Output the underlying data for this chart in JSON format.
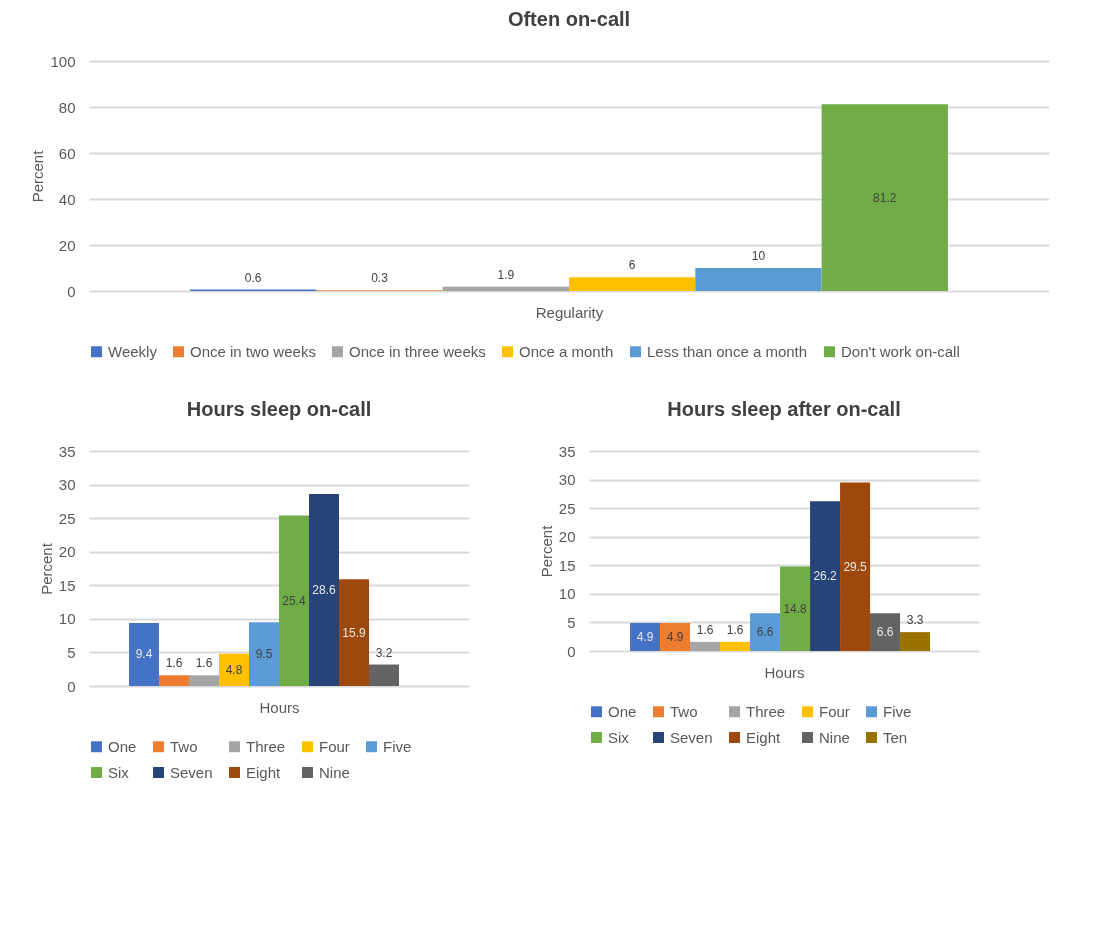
{
  "chart_data": [
    {
      "type": "bar",
      "title": "Often on-call",
      "xlabel": "Regularity",
      "ylabel": "Percent",
      "categories": [
        null
      ],
      "ylim": [
        0,
        100
      ],
      "yticks": [
        0,
        20,
        40,
        60,
        80,
        100
      ],
      "grid": "y",
      "legend": "bottom",
      "data_labels": true,
      "series": [
        {
          "name": "Weekly",
          "color": "#4472c4",
          "values": [
            0.6
          ]
        },
        {
          "name": "Once in two weeks",
          "color": "#ed7d31",
          "values": [
            0.3
          ]
        },
        {
          "name": "Once in three weeks",
          "color": "#a5a5a5",
          "values": [
            1.9
          ]
        },
        {
          "name": "Once a month",
          "color": "#ffc000",
          "values": [
            6
          ]
        },
        {
          "name": "Less than once a month",
          "color": "#5b9bd5",
          "values": [
            10
          ]
        },
        {
          "name": "Don't work on-call",
          "color": "#70ad47",
          "values": [
            81.2
          ]
        }
      ]
    },
    {
      "type": "bar",
      "title": "Hours sleep on-call",
      "xlabel": "Hours",
      "ylabel": "Percent",
      "categories": [
        null
      ],
      "ylim": [
        0,
        35
      ],
      "yticks": [
        0,
        5,
        10,
        15,
        20,
        25,
        30,
        35
      ],
      "grid": "y",
      "legend": "bottom",
      "data_labels": true,
      "series": [
        {
          "name": "One",
          "color": "#4472c4",
          "values": [
            9.4
          ]
        },
        {
          "name": "Two",
          "color": "#ed7d31",
          "values": [
            1.6
          ]
        },
        {
          "name": "Three",
          "color": "#a5a5a5",
          "values": [
            1.6
          ]
        },
        {
          "name": "Four",
          "color": "#ffc000",
          "values": [
            4.8
          ]
        },
        {
          "name": "Five",
          "color": "#5b9bd5",
          "values": [
            9.5
          ]
        },
        {
          "name": "Six",
          "color": "#70ad47",
          "values": [
            25.4
          ]
        },
        {
          "name": "Seven",
          "color": "#264478",
          "values": [
            28.6
          ]
        },
        {
          "name": "Eight",
          "color": "#9e480e",
          "values": [
            15.9
          ]
        },
        {
          "name": "Nine",
          "color": "#636363",
          "values": [
            3.2
          ]
        }
      ]
    },
    {
      "type": "bar",
      "title": "Hours sleep after on-call",
      "xlabel": "Hours",
      "ylabel": "Percent",
      "categories": [
        null
      ],
      "ylim": [
        0,
        35
      ],
      "yticks": [
        0,
        5,
        10,
        15,
        20,
        25,
        30,
        35
      ],
      "grid": "y",
      "legend": "bottom",
      "data_labels": true,
      "series": [
        {
          "name": "One",
          "color": "#4472c4",
          "values": [
            4.9
          ]
        },
        {
          "name": "Two",
          "color": "#ed7d31",
          "values": [
            4.9
          ]
        },
        {
          "name": "Three",
          "color": "#a5a5a5",
          "values": [
            1.6
          ]
        },
        {
          "name": "Four",
          "color": "#ffc000",
          "values": [
            1.6
          ]
        },
        {
          "name": "Five",
          "color": "#5b9bd5",
          "values": [
            6.6
          ]
        },
        {
          "name": "Six",
          "color": "#70ad47",
          "values": [
            14.8
          ]
        },
        {
          "name": "Seven",
          "color": "#264478",
          "values": [
            26.2
          ]
        },
        {
          "name": "Eight",
          "color": "#9e480e",
          "values": [
            29.5
          ]
        },
        {
          "name": "Nine",
          "color": "#636363",
          "values": [
            6.6
          ]
        },
        {
          "name": "Ten",
          "color": "#997300",
          "values": [
            3.3
          ]
        }
      ]
    }
  ]
}
